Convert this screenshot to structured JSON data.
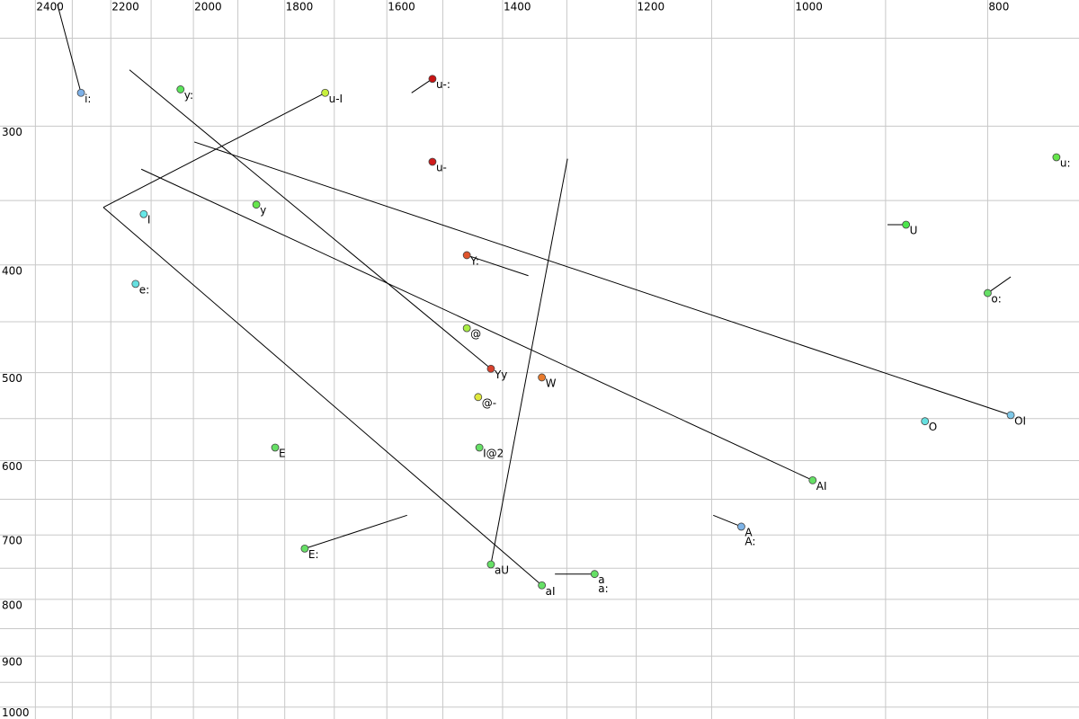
{
  "chart_data": {
    "type": "scatter",
    "xscale": "log",
    "yscale": "log",
    "xlim": [
      2500,
      720
    ],
    "ylim": [
      231,
      1025
    ],
    "xticks": [
      2400,
      2200,
      2000,
      1800,
      1600,
      1400,
      1200,
      1000,
      800
    ],
    "yticks": [
      300,
      400,
      500,
      600,
      700,
      800,
      900,
      1000
    ],
    "xgrid": [
      2400,
      2300,
      2200,
      2100,
      2000,
      1900,
      1800,
      1700,
      1600,
      1500,
      1400,
      1300,
      1200,
      1100,
      1000,
      900,
      800
    ],
    "ygrid": [
      250,
      300,
      350,
      400,
      450,
      500,
      550,
      600,
      650,
      700,
      750,
      800,
      850,
      900,
      950,
      1000
    ],
    "grid": true,
    "points": [
      {
        "label": [
          "i:"
        ],
        "f2": 2277,
        "f1": 280,
        "color": "#7eb1e8",
        "to": [
          2340,
          233
        ]
      },
      {
        "label": [
          "y:"
        ],
        "f2": 2030,
        "f1": 278,
        "color": "#5ce65c"
      },
      {
        "label": [
          "u-I"
        ],
        "f2": 1718,
        "f1": 280,
        "color": "#c8f03c",
        "to": [
          2219,
          355
        ]
      },
      {
        "label": [
          "u-:"
        ],
        "f2": 1518,
        "f1": 272,
        "color": "#c81414",
        "to": [
          1555,
          280
        ]
      },
      {
        "label": [
          "u-"
        ],
        "f2": 1518,
        "f1": 323,
        "color": "#d01c1c"
      },
      {
        "label": [
          "u:"
        ],
        "f2": 739,
        "f1": 320,
        "color": "#66e64c"
      },
      {
        "label": [
          "I"
        ],
        "f2": 2118,
        "f1": 360,
        "color": "#66e8e8"
      },
      {
        "label": [
          "y"
        ],
        "f2": 1860,
        "f1": 353,
        "color": "#66e64c"
      },
      {
        "label": [
          "U"
        ],
        "f2": 879,
        "f1": 368,
        "color": "#4ce64c",
        "to": [
          898,
          368
        ]
      },
      {
        "label": [
          "Y:"
        ],
        "f2": 1459,
        "f1": 392,
        "color": "#e0542c",
        "to": [
          1359,
          409
        ]
      },
      {
        "label": [
          "e:"
        ],
        "f2": 2138,
        "f1": 416,
        "color": "#66e0e0"
      },
      {
        "label": [
          "o:"
        ],
        "f2": 800,
        "f1": 424,
        "color": "#66e066",
        "to": [
          779,
          410
        ]
      },
      {
        "label": [
          "@"
        ],
        "f2": 1459,
        "f1": 456,
        "color": "#aaee44"
      },
      {
        "label": [
          "Yy"
        ],
        "f2": 1419,
        "f1": 496,
        "color": "#d8402c",
        "to": [
          2153,
          267
        ]
      },
      {
        "label": [
          "W"
        ],
        "f2": 1338,
        "f1": 505,
        "color": "#e87a2c"
      },
      {
        "label": [
          "@-"
        ],
        "f2": 1440,
        "f1": 526,
        "color": "#e0e83c"
      },
      {
        "label": [
          "O"
        ],
        "f2": 860,
        "f1": 553,
        "color": "#66e0e0"
      },
      {
        "label": [
          "OI"
        ],
        "f2": 779,
        "f1": 546,
        "color": "#7ec8e8",
        "to": [
          1998,
          310
        ]
      },
      {
        "label": [
          "E"
        ],
        "f2": 1820,
        "f1": 584,
        "color": "#66e066"
      },
      {
        "label": [
          "I@2"
        ],
        "f2": 1438,
        "f1": 584,
        "color": "#66e066"
      },
      {
        "label": [
          "AI"
        ],
        "f2": 979,
        "f1": 625,
        "color": "#66e066",
        "to": [
          2124,
          328
        ]
      },
      {
        "label": [
          "A",
          "A:"
        ],
        "f2": 1063,
        "f1": 688,
        "color": "#7eb4e8",
        "to": [
          1098,
          672
        ]
      },
      {
        "label": [
          "E:"
        ],
        "f2": 1759,
        "f1": 720,
        "color": "#66e066",
        "to": [
          1563,
          672
        ]
      },
      {
        "label": [
          "aU"
        ],
        "f2": 1419,
        "f1": 744,
        "color": "#66e066",
        "to": [
          1299,
          321
        ]
      },
      {
        "label": [
          "a",
          "a:"
        ],
        "f2": 1259,
        "f1": 759,
        "color": "#66e066",
        "to": [
          1318,
          759
        ]
      },
      {
        "label": [
          "aI"
        ],
        "f2": 1338,
        "f1": 777,
        "color": "#66e066",
        "to": [
          2219,
          355
        ]
      }
    ]
  }
}
